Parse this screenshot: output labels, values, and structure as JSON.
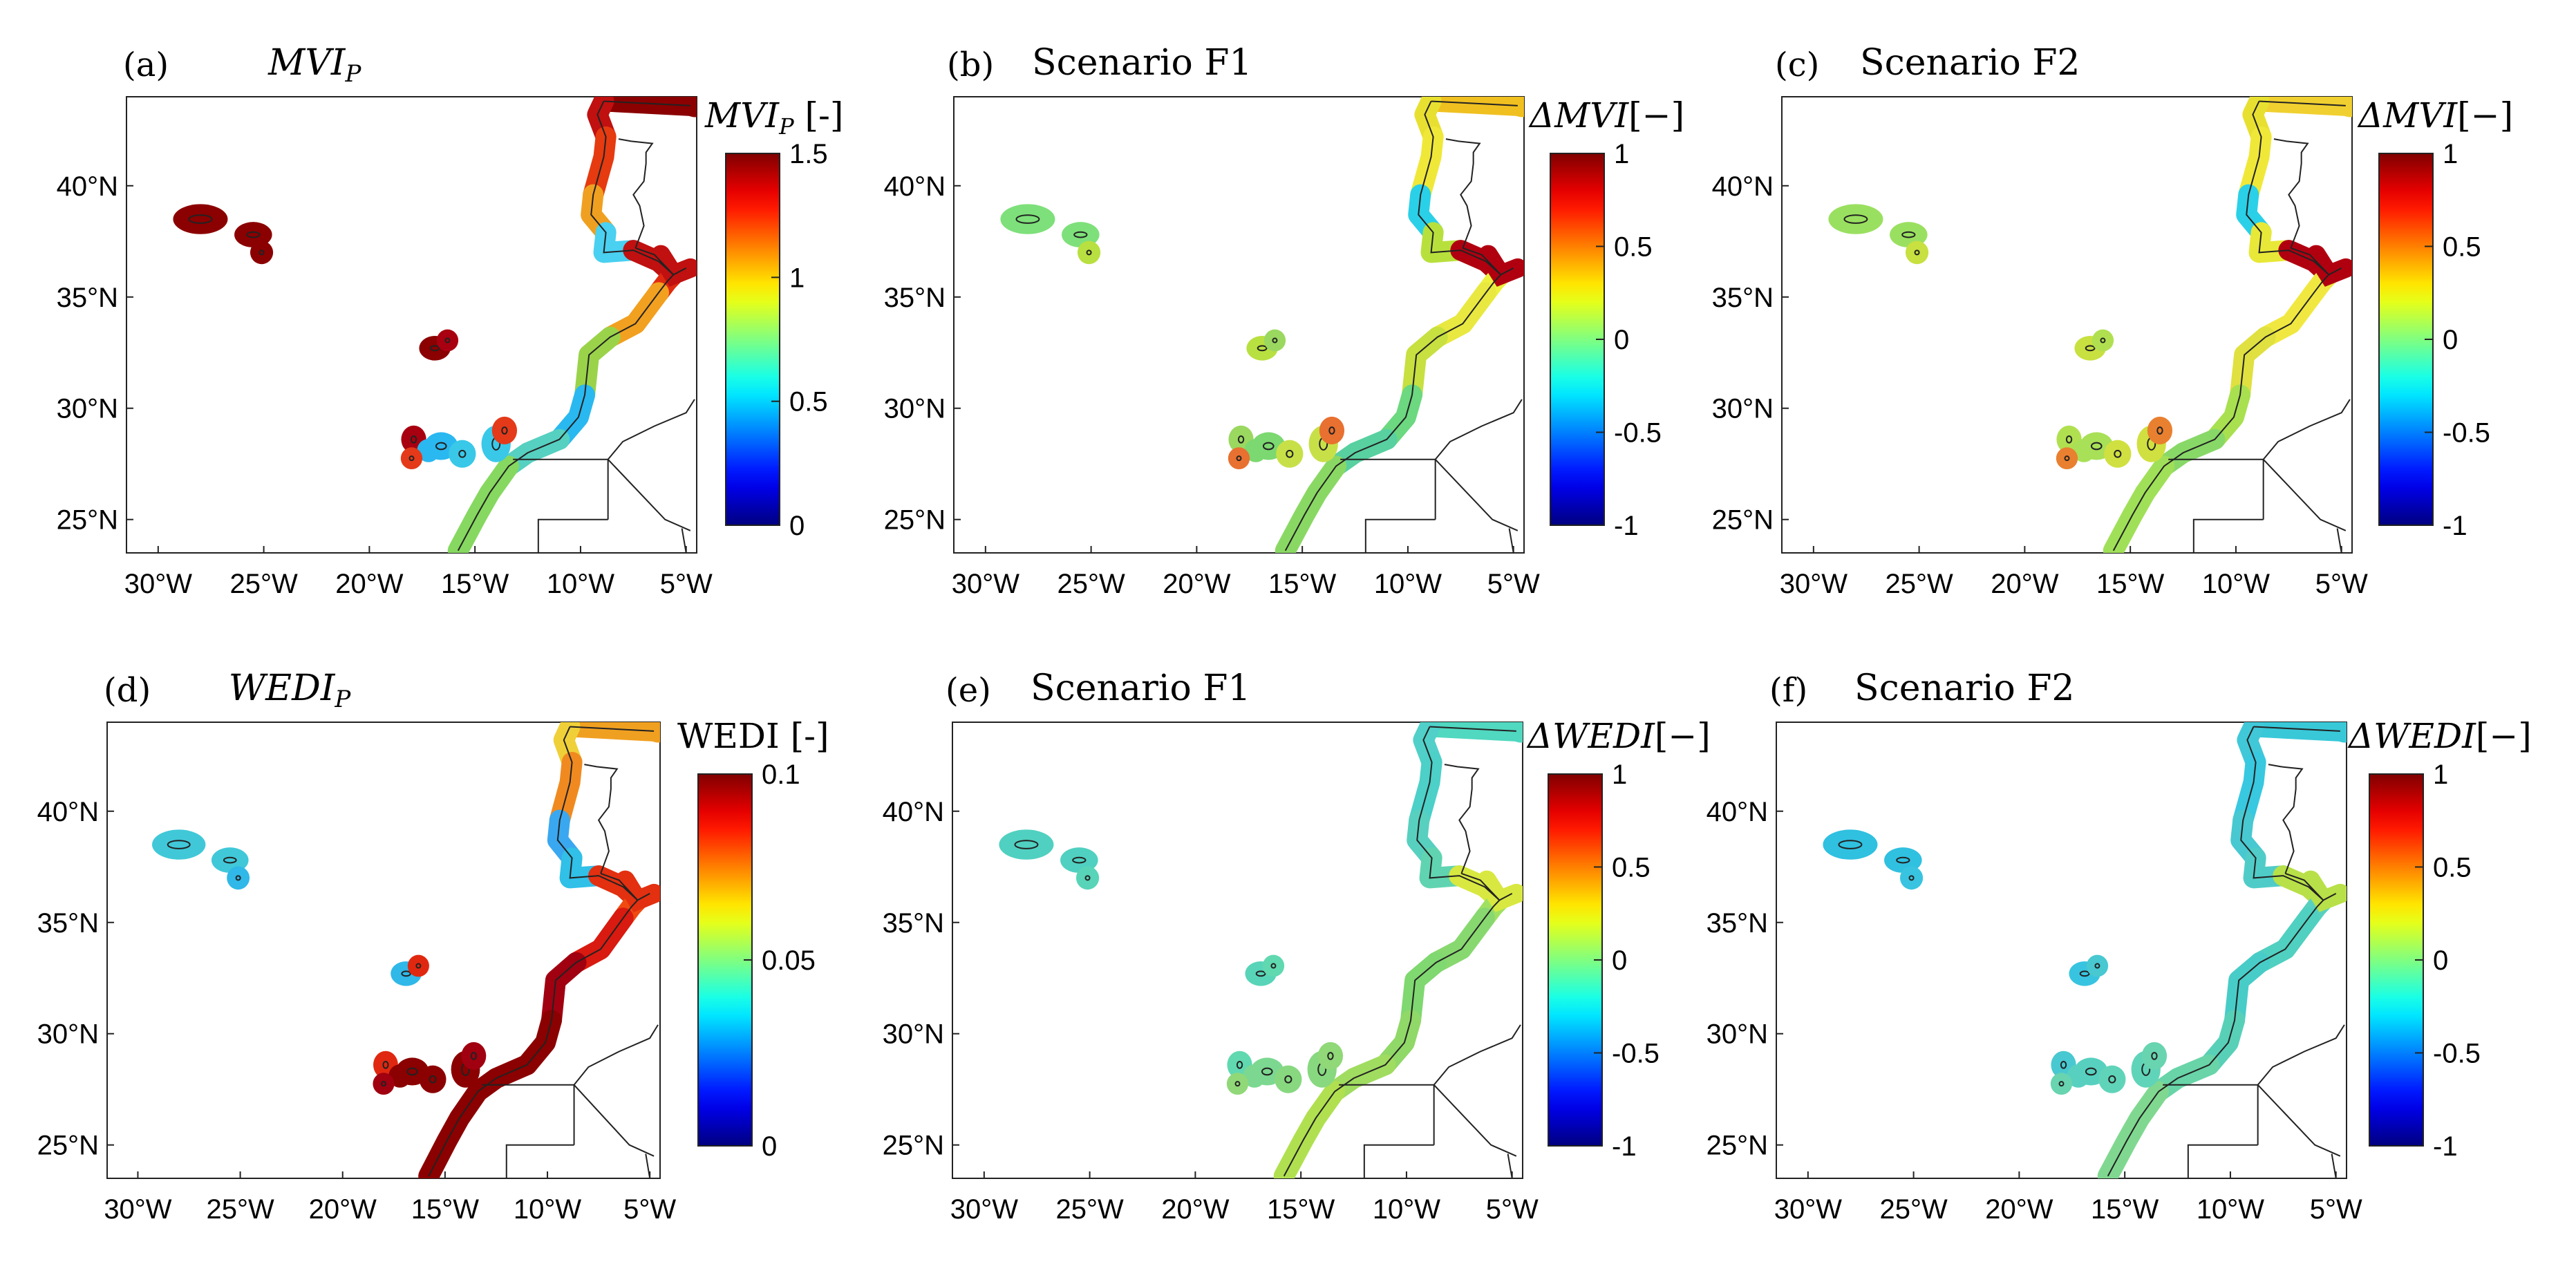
{
  "figure": {
    "panels": [
      {
        "id": "a",
        "label": "(a)",
        "title_main": "MVI",
        "title_sub": "P",
        "title_italic": true,
        "cbar_main": "MVI",
        "cbar_sub": "P",
        "cbar_italic": true,
        "cbar_unit": " [-]",
        "cbar_ticks": [
          "1.5",
          "1",
          "0.5",
          "0"
        ],
        "vmin": 0,
        "vmax": 1.5,
        "coast_value": 1.5,
        "coast_colors": [
          "#8b0000",
          "#c01010",
          "#e63a10",
          "#f0a020",
          "#4ad0f0",
          "#c01010",
          "#e02a10",
          "#f2a020",
          "#9ad34a",
          "#2ab8f0",
          "#56d0c0",
          "#86d860"
        ],
        "island_colors": [
          "#8b0000",
          "#8b0000",
          "#a80010",
          "#2ab8f0",
          "#3ac8e8",
          "#e43a1a"
        ]
      },
      {
        "id": "b",
        "label": "(b)",
        "title_main": "Scenario F1",
        "title_sub": "",
        "title_italic": false,
        "cbar_main": "ΔMVI",
        "cbar_sub": "",
        "cbar_italic": true,
        "cbar_unit": "[−]",
        "cbar_ticks": [
          "1",
          "0.5",
          "0",
          "-0.5",
          "-1"
        ],
        "vmin": -1,
        "vmax": 1,
        "coast_colors": [
          "#f0c020",
          "#e8e030",
          "#f0e838",
          "#2ad0e8",
          "#b8e03c",
          "#b00010",
          "#eef040",
          "#e8e840",
          "#c8e040",
          "#6cd880",
          "#58d0a0",
          "#8ad864"
        ],
        "island_colors": [
          "#7ee07a",
          "#b8e040",
          "#9ad860",
          "#7cd870",
          "#c8e048",
          "#e87030"
        ]
      },
      {
        "id": "c",
        "label": "(c)",
        "title_main": "Scenario F2",
        "title_sub": "",
        "title_italic": false,
        "cbar_main": "ΔMVI",
        "cbar_sub": "",
        "cbar_italic": true,
        "cbar_unit": "[−]",
        "cbar_ticks": [
          "1",
          "0.5",
          "0",
          "-0.5",
          "-1"
        ],
        "vmin": -1,
        "vmax": 1,
        "coast_colors": [
          "#f0d030",
          "#e8e030",
          "#f0e838",
          "#2ad0e8",
          "#e8e838",
          "#b00010",
          "#f0e840",
          "#f0e840",
          "#e0e040",
          "#a8e050",
          "#88d868",
          "#a0e058"
        ],
        "island_colors": [
          "#9ae060",
          "#c8e040",
          "#b0e050",
          "#a8e058",
          "#d0e040",
          "#e88030"
        ]
      },
      {
        "id": "d",
        "label": "(d)",
        "title_main": "WEDI",
        "title_sub": "P",
        "title_italic": true,
        "cbar_main": "WEDI",
        "cbar_sub": "",
        "cbar_italic": false,
        "cbar_unit": " [-]",
        "cbar_ticks": [
          "0.1",
          "0.05",
          "0"
        ],
        "vmin": 0,
        "vmax": 0.1,
        "coast_colors": [
          "#f0a020",
          "#f0d038",
          "#f08a20",
          "#3aa8f0",
          "#30c0e8",
          "#e23010",
          "#f04a10",
          "#d81a10",
          "#a00010",
          "#8b0000",
          "#8b0000",
          "#8b0000"
        ],
        "island_colors": [
          "#40c8d8",
          "#30b8e8",
          "#e02810",
          "#8b0000",
          "#8b0000",
          "#a00010"
        ]
      },
      {
        "id": "e",
        "label": "(e)",
        "title_main": "Scenario F1",
        "title_sub": "",
        "title_italic": false,
        "cbar_main": "ΔWEDI",
        "cbar_sub": "",
        "cbar_italic": true,
        "cbar_unit": "[−]",
        "cbar_ticks": [
          "1",
          "0.5",
          "0",
          "-0.5",
          "-1"
        ],
        "vmin": -1,
        "vmax": 1,
        "coast_colors": [
          "#50d8c0",
          "#50d0c8",
          "#4cd0c8",
          "#58d0c0",
          "#60d4b0",
          "#d8e840",
          "#a0e060",
          "#88d870",
          "#80d870",
          "#90d868",
          "#a0dc60",
          "#b0e050"
        ],
        "island_colors": [
          "#50d0c0",
          "#58d4b8",
          "#60d8b0",
          "#7cd890",
          "#88d880",
          "#90d878"
        ]
      },
      {
        "id": "f",
        "label": "(f)",
        "title_main": "Scenario F2",
        "title_sub": "",
        "title_italic": false,
        "cbar_main": "ΔWEDI",
        "cbar_sub": "",
        "cbar_italic": true,
        "cbar_unit": "[−]",
        "cbar_ticks": [
          "1",
          "0.5",
          "0",
          "-0.5",
          "-1"
        ],
        "vmin": -1,
        "vmax": 1,
        "coast_colors": [
          "#38c8d8",
          "#40c8d8",
          "#38c8e0",
          "#48c8d0",
          "#50ccc8",
          "#b8e048",
          "#58d0c0",
          "#50d0c0",
          "#48ccc8",
          "#58d0b8",
          "#68d4a8",
          "#80d890"
        ],
        "island_colors": [
          "#30c0e0",
          "#38c4e0",
          "#48c8d0",
          "#58d0c0",
          "#60d4b8",
          "#68d4b0"
        ]
      }
    ],
    "lon_ticks": [
      "30°W",
      "25°W",
      "20°W",
      "15°W",
      "10°W",
      "5°W"
    ],
    "lat_ticks": [
      "40°N",
      "35°N",
      "30°N",
      "25°N"
    ],
    "lon_range": [
      -31.5,
      -4.5
    ],
    "lat_range": [
      23.5,
      44.0
    ]
  }
}
